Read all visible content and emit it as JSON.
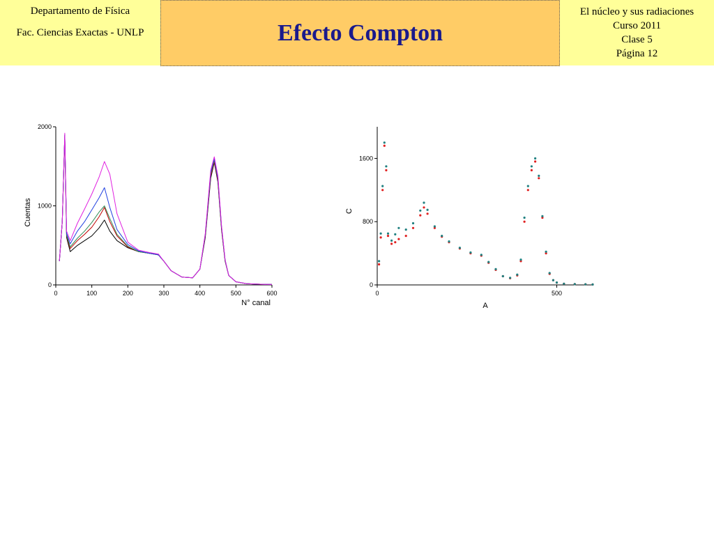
{
  "header": {
    "left": {
      "line1": "Departamento de Física",
      "line2": "Fac. Ciencias Exactas - UNLP"
    },
    "title": "Efecto Compton",
    "right": {
      "line1": "El núcleo y sus radiaciones",
      "line2": "Curso 2011",
      "line3": "Clase 5",
      "line4": "Página 12"
    }
  },
  "chart_data": [
    {
      "type": "line",
      "title": "",
      "xlabel": "N° canal",
      "ylabel": "Cuentas",
      "xlim": [
        0,
        600
      ],
      "ylim": [
        0,
        2000
      ],
      "xticks": [
        "0",
        "100",
        "200",
        "300",
        "400",
        "500",
        "600"
      ],
      "yticks": [
        "0",
        "1000",
        "2000"
      ],
      "grid": false,
      "legend": "none",
      "series": [
        {
          "color": "#000000",
          "x": [
            10,
            18,
            25,
            30,
            40,
            60,
            80,
            100,
            120,
            135,
            150,
            170,
            200,
            230,
            260,
            285,
            300,
            320,
            350,
            380,
            400,
            415,
            430,
            440,
            450,
            460,
            470,
            480,
            500,
            530,
            560,
            600
          ],
          "y": [
            300,
            800,
            1900,
            600,
            420,
            500,
            560,
            620,
            720,
            820,
            680,
            560,
            470,
            420,
            400,
            380,
            300,
            180,
            100,
            90,
            200,
            600,
            1350,
            1550,
            1300,
            700,
            300,
            120,
            40,
            15,
            10,
            5
          ]
        },
        {
          "color": "#c00000",
          "x": [
            10,
            18,
            25,
            30,
            40,
            60,
            80,
            100,
            120,
            135,
            150,
            170,
            200,
            230,
            260,
            285,
            300,
            320,
            350,
            380,
            400,
            415,
            430,
            440,
            450,
            460,
            470,
            480,
            500,
            530,
            560,
            600
          ],
          "y": [
            300,
            800,
            1880,
            620,
            460,
            560,
            640,
            730,
            860,
            980,
            800,
            620,
            480,
            420,
            400,
            380,
            300,
            180,
            100,
            90,
            200,
            620,
            1380,
            1560,
            1320,
            720,
            310,
            120,
            40,
            15,
            10,
            5
          ]
        },
        {
          "color": "#2e8b57",
          "x": [
            10,
            18,
            25,
            30,
            40,
            60,
            80,
            100,
            120,
            135,
            150,
            170,
            200,
            230,
            260,
            285,
            300,
            320,
            350,
            380,
            400,
            415,
            430,
            440,
            450,
            460,
            470,
            480,
            500,
            530,
            560,
            600
          ],
          "y": [
            300,
            800,
            1890,
            630,
            480,
            590,
            680,
            790,
            920,
            1000,
            840,
            640,
            490,
            420,
            400,
            380,
            300,
            180,
            100,
            90,
            200,
            630,
            1400,
            1580,
            1340,
            730,
            310,
            120,
            40,
            15,
            10,
            5
          ]
        },
        {
          "color": "#2040e0",
          "x": [
            10,
            18,
            25,
            30,
            40,
            60,
            80,
            100,
            120,
            135,
            150,
            170,
            200,
            230,
            260,
            285,
            300,
            320,
            350,
            380,
            400,
            415,
            430,
            440,
            450,
            460,
            470,
            480,
            500,
            530,
            560,
            600
          ],
          "y": [
            300,
            800,
            1900,
            650,
            520,
            680,
            800,
            950,
            1100,
            1230,
            980,
            700,
            510,
            430,
            400,
            380,
            300,
            180,
            100,
            90,
            200,
            640,
            1420,
            1600,
            1350,
            740,
            320,
            120,
            40,
            15,
            10,
            5
          ]
        },
        {
          "color": "#e020e0",
          "x": [
            10,
            18,
            25,
            30,
            40,
            60,
            80,
            100,
            120,
            135,
            150,
            170,
            200,
            230,
            260,
            285,
            300,
            320,
            350,
            380,
            400,
            415,
            430,
            440,
            450,
            460,
            470,
            480,
            500,
            530,
            560,
            600
          ],
          "y": [
            300,
            800,
            1920,
            680,
            560,
            780,
            960,
            1150,
            1360,
            1560,
            1400,
            900,
            540,
            440,
            410,
            390,
            300,
            180,
            100,
            90,
            200,
            650,
            1450,
            1620,
            1380,
            750,
            320,
            120,
            40,
            15,
            10,
            5
          ]
        }
      ]
    },
    {
      "type": "scatter",
      "title": "",
      "xlabel": "A",
      "ylabel": "C",
      "xlim": [
        0,
        600
      ],
      "ylim": [
        0,
        2000
      ],
      "xticks": [
        "0",
        "500"
      ],
      "yticks": [
        "0",
        "800",
        "1600"
      ],
      "grid": false,
      "legend": "none",
      "series": [
        {
          "color": "#e02020",
          "x": [
            5,
            10,
            15,
            20,
            25,
            30,
            40,
            50,
            60,
            80,
            100,
            120,
            130,
            140,
            160,
            180,
            200,
            230,
            260,
            290,
            310,
            330,
            350,
            370,
            390,
            400,
            410,
            420,
            430,
            440,
            450,
            460,
            470,
            480,
            490,
            500,
            520,
            550,
            580,
            600
          ],
          "y": [
            260,
            600,
            1200,
            1760,
            1450,
            620,
            520,
            540,
            580,
            620,
            720,
            880,
            980,
            900,
            720,
            610,
            540,
            460,
            400,
            370,
            280,
            190,
            110,
            85,
            120,
            300,
            800,
            1200,
            1450,
            1560,
            1350,
            850,
            400,
            140,
            60,
            30,
            15,
            10,
            8,
            5
          ]
        },
        {
          "color": "#208080",
          "x": [
            5,
            10,
            15,
            20,
            25,
            30,
            40,
            50,
            60,
            80,
            100,
            120,
            130,
            140,
            160,
            180,
            200,
            230,
            260,
            290,
            310,
            330,
            350,
            370,
            390,
            400,
            410,
            420,
            430,
            440,
            450,
            460,
            470,
            480,
            490,
            500,
            520,
            550,
            580,
            600
          ],
          "y": [
            300,
            650,
            1250,
            1800,
            1500,
            650,
            560,
            640,
            720,
            700,
            780,
            940,
            1040,
            950,
            740,
            620,
            550,
            470,
            410,
            380,
            290,
            200,
            110,
            90,
            130,
            320,
            850,
            1250,
            1500,
            1600,
            1380,
            870,
            420,
            150,
            60,
            30,
            15,
            10,
            8,
            5
          ]
        }
      ]
    }
  ]
}
